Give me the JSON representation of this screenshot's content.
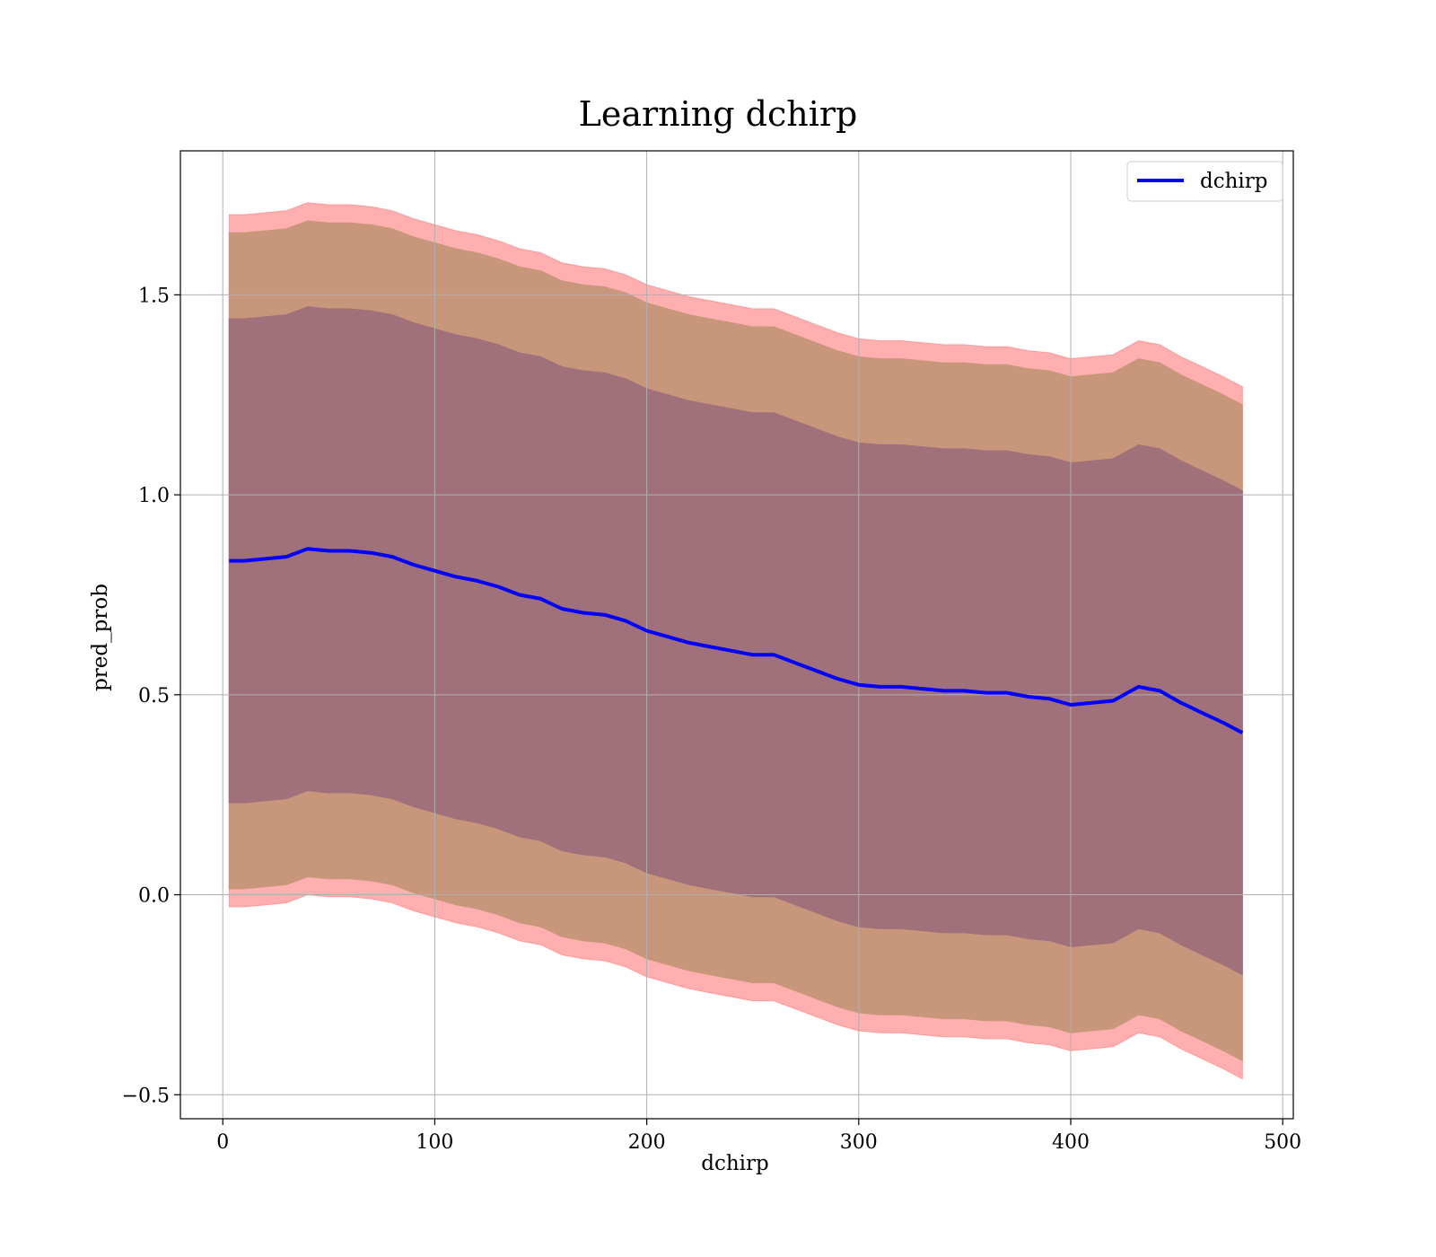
{
  "chart_data": {
    "type": "line",
    "title": "Learning dchirp",
    "xlabel": "dchirp",
    "ylabel": "pred_prob",
    "xlim": [
      -20,
      505
    ],
    "ylim": [
      -0.56,
      1.86
    ],
    "xticks": [
      0,
      100,
      200,
      300,
      400,
      500
    ],
    "xtick_labels": [
      "0",
      "100",
      "200",
      "300",
      "400",
      "500"
    ],
    "yticks": [
      -0.5,
      0.0,
      0.5,
      1.0,
      1.5
    ],
    "ytick_labels": [
      "−0.5",
      "0.0",
      "0.5",
      "1.0",
      "1.5"
    ],
    "grid": true,
    "legend": {
      "position": "top-right",
      "entries": [
        "dchirp"
      ]
    },
    "colors": {
      "line": "#0000ff",
      "band_outer": "#ff9999",
      "band_middle": "#c8967a",
      "band_inner": "#a0717a"
    },
    "x": [
      3,
      10,
      20,
      30,
      40,
      50,
      60,
      70,
      80,
      90,
      100,
      110,
      120,
      130,
      140,
      150,
      160,
      170,
      180,
      190,
      200,
      210,
      220,
      230,
      240,
      250,
      260,
      270,
      280,
      290,
      300,
      310,
      320,
      330,
      340,
      350,
      360,
      370,
      380,
      390,
      400,
      410,
      420,
      432,
      442,
      452,
      462,
      472,
      481
    ],
    "series": [
      {
        "name": "dchirp",
        "values": [
          0.835,
          0.835,
          0.84,
          0.845,
          0.865,
          0.86,
          0.86,
          0.855,
          0.845,
          0.825,
          0.81,
          0.795,
          0.785,
          0.77,
          0.75,
          0.74,
          0.715,
          0.705,
          0.7,
          0.685,
          0.66,
          0.645,
          0.63,
          0.62,
          0.61,
          0.6,
          0.6,
          0.58,
          0.56,
          0.54,
          0.525,
          0.52,
          0.52,
          0.515,
          0.51,
          0.51,
          0.505,
          0.505,
          0.495,
          0.49,
          0.475,
          0.48,
          0.485,
          0.52,
          0.51,
          0.48,
          0.455,
          0.43,
          0.405
        ]
      }
    ],
    "bands": [
      {
        "name": "outer",
        "half_width": 0.865
      },
      {
        "name": "middle",
        "half_width": 0.82
      },
      {
        "name": "inner",
        "half_width": 0.605
      }
    ]
  }
}
